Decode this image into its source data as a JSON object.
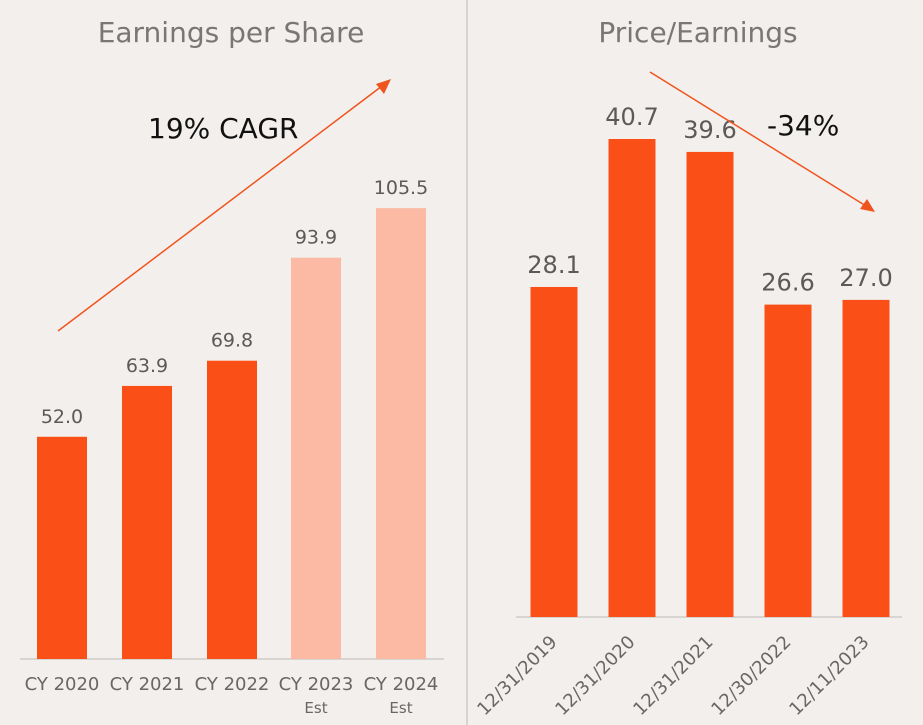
{
  "colors": {
    "background": "#f2efec",
    "actual_bar": "#fa4f16",
    "estimate_bar": "#fcb9a3",
    "divider": "#d6d3d0",
    "arrow": "#f0541e"
  },
  "chart_data": [
    {
      "type": "bar",
      "title": "Earnings per Share",
      "categories": [
        "CY 2020",
        "CY 2021",
        "CY 2022",
        "CY 2023",
        "CY 2024"
      ],
      "category_sublabels": [
        "",
        "",
        "",
        "Est",
        "Est"
      ],
      "values": [
        52.0,
        63.9,
        69.8,
        93.9,
        105.5
      ],
      "value_labels": [
        "52.0",
        "63.9",
        "69.8",
        "93.9",
        "105.5"
      ],
      "estimate": [
        false,
        false,
        false,
        true,
        true
      ],
      "ylim": [
        0,
        128
      ],
      "xlabel": "",
      "ylabel": "",
      "grid": false,
      "annotation": {
        "text": "19% CAGR",
        "arrow": "up"
      }
    },
    {
      "type": "bar",
      "title": "Price/Earnings",
      "categories": [
        "12/31/2019",
        "12/31/2020",
        "12/31/2021",
        "12/30/2022",
        "12/11/2023"
      ],
      "values": [
        28.1,
        40.7,
        39.6,
        26.6,
        27.0
      ],
      "value_labels": [
        "28.1",
        "40.7",
        "39.6",
        "26.6",
        "27.0"
      ],
      "ylim": [
        0,
        43
      ],
      "xlabel": "",
      "ylabel": "",
      "grid": false,
      "annotation": {
        "text": "-34%",
        "arrow": "down"
      }
    }
  ]
}
